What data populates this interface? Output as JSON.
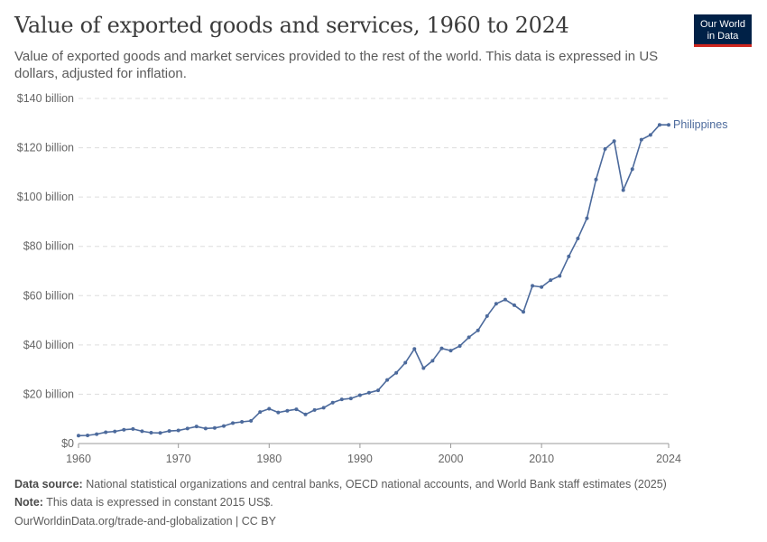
{
  "header": {
    "title": "Value of exported goods and services, 1960 to 2024",
    "subtitle": "Value of exported goods and market services provided to the rest of the world. This data is expressed in US dollars, adjusted for inflation."
  },
  "logo": {
    "line1": "Our World",
    "line2": "in Data",
    "bg": "#002147",
    "accent": "#ce261e"
  },
  "footer": {
    "source_label": "Data source:",
    "source_text": "National statistical organizations and central banks, OECD national accounts, and World Bank staff estimates (2025)",
    "note_label": "Note:",
    "note_text": "This data is expressed in constant 2015 US$.",
    "url": "OurWorldinData.org/trade-and-globalization | CC BY"
  },
  "chart_data": {
    "type": "line",
    "title": "Value of exported goods and services, 1960 to 2024",
    "xlim": [
      1959,
      2024
    ],
    "ylim": [
      0,
      140
    ],
    "y_unit": "billion US$",
    "grid": "horizontal dashed",
    "x_ticks": [
      {
        "value": 1959,
        "label": "1960"
      },
      {
        "value": 1970,
        "label": "1970"
      },
      {
        "value": 1980,
        "label": "1980"
      },
      {
        "value": 1990,
        "label": "1990"
      },
      {
        "value": 2000,
        "label": "2000"
      },
      {
        "value": 2010,
        "label": "2010"
      },
      {
        "value": 2024,
        "label": "2024"
      }
    ],
    "y_ticks": [
      {
        "value": 0,
        "label": "$0"
      },
      {
        "value": 20,
        "label": "$20 billion"
      },
      {
        "value": 40,
        "label": "$40 billion"
      },
      {
        "value": 60,
        "label": "$60 billion"
      },
      {
        "value": 80,
        "label": "$80 billion"
      },
      {
        "value": 100,
        "label": "$100 billion"
      },
      {
        "value": 120,
        "label": "$120 billion"
      },
      {
        "value": 140,
        "label": "$140 billion"
      }
    ],
    "series": [
      {
        "name": "Philippines",
        "color": "#4c6a9c",
        "x": [
          1959,
          1960,
          1961,
          1962,
          1963,
          1964,
          1965,
          1966,
          1967,
          1968,
          1969,
          1970,
          1971,
          1972,
          1973,
          1974,
          1975,
          1976,
          1977,
          1978,
          1979,
          1980,
          1981,
          1982,
          1983,
          1984,
          1985,
          1986,
          1987,
          1988,
          1989,
          1990,
          1991,
          1992,
          1993,
          1994,
          1995,
          1996,
          1997,
          1998,
          1999,
          2000,
          2001,
          2002,
          2003,
          2004,
          2005,
          2006,
          2007,
          2008,
          2009,
          2010,
          2011,
          2012,
          2013,
          2014,
          2015,
          2016,
          2017,
          2018,
          2019,
          2020,
          2021,
          2022,
          2023,
          2024
        ],
        "values": [
          3.2,
          3.3,
          3.8,
          4.6,
          4.9,
          5.6,
          5.9,
          5.0,
          4.4,
          4.3,
          5.1,
          5.3,
          6.1,
          6.9,
          6.1,
          6.3,
          7.1,
          8.3,
          8.8,
          9.2,
          12.8,
          14.1,
          12.6,
          13.3,
          13.9,
          11.8,
          13.6,
          14.5,
          16.6,
          17.9,
          18.3,
          19.6,
          20.6,
          21.6,
          25.8,
          28.7,
          32.8,
          38.4,
          30.6,
          33.6,
          38.6,
          37.7,
          39.6,
          43.1,
          45.9,
          51.7,
          56.7,
          58.4,
          56.1,
          53.4,
          64.0,
          63.5,
          66.3,
          68.0,
          75.9,
          83.2,
          91.4,
          107.1,
          119.5,
          122.7,
          102.8,
          111.3,
          123.3,
          125.2,
          129.3,
          129.3
        ]
      }
    ]
  }
}
